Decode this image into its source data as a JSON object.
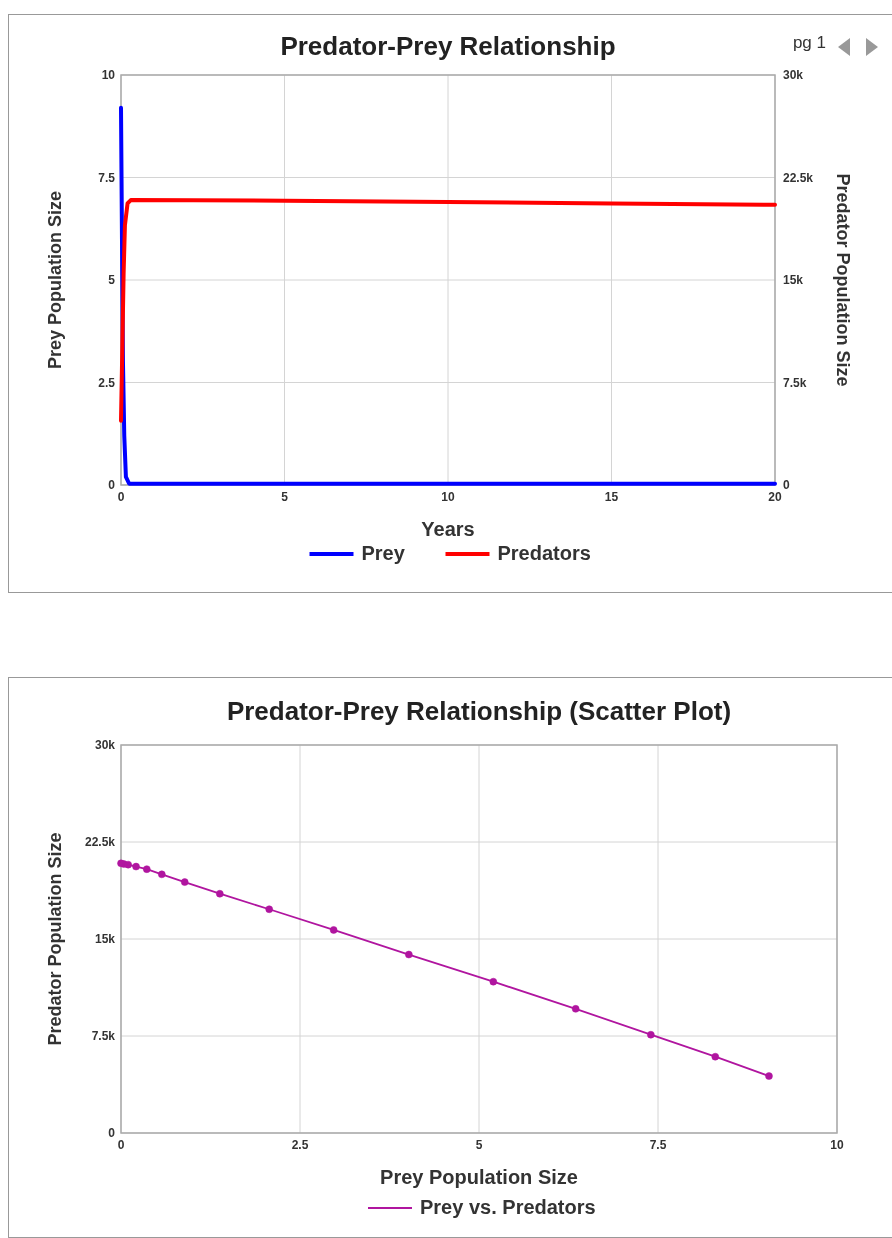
{
  "chart_data": [
    {
      "type": "line",
      "title": "Predator-Prey Relationship",
      "xlabel": "Years",
      "ylabel": "Prey Population Size",
      "y2label": "Predator Population Size",
      "annotations": [
        "pg 1"
      ],
      "xlim": [
        0,
        20
      ],
      "xticks": [
        0,
        5,
        10,
        15,
        20
      ],
      "ylim": [
        0,
        10
      ],
      "yticks": [
        0,
        2.5,
        5,
        7.5,
        10
      ],
      "y2lim": [
        0,
        30000
      ],
      "y2ticks": [
        {
          "value": 0,
          "label": "0"
        },
        {
          "value": 7500,
          "label": "7.5k"
        },
        {
          "value": 15000,
          "label": "15k"
        },
        {
          "value": 22500,
          "label": "22.5k"
        },
        {
          "value": 30000,
          "label": "30k"
        }
      ],
      "grid": true,
      "legend": "bottom",
      "marker": "none",
      "series": [
        {
          "name": "Prey",
          "color": "#0000ff",
          "x": [
            0,
            0.03,
            0.06,
            0.1,
            0.15,
            0.25,
            20
          ],
          "values": [
            9.2,
            6,
            3,
            1.2,
            0.2,
            0.03,
            0.03
          ]
        },
        {
          "name": "Predators",
          "color": "#ff0000",
          "axis": "y2",
          "x": [
            0,
            0.04,
            0.08,
            0.12,
            0.2,
            0.3,
            5,
            10,
            15,
            20
          ],
          "values": [
            4700,
            10000,
            15500,
            19000,
            20600,
            20850,
            20800,
            20700,
            20600,
            20500
          ]
        }
      ]
    },
    {
      "type": "line",
      "title": "Predator-Prey Relationship (Scatter Plot)",
      "xlabel": "Prey Population Size",
      "ylabel": "Predator Population Size",
      "xlim": [
        0,
        10
      ],
      "xticks": [
        0,
        2.5,
        5,
        7.5,
        10
      ],
      "ylim": [
        0,
        30000
      ],
      "yticks": [
        {
          "value": 0,
          "label": "0"
        },
        {
          "value": 7500,
          "label": "7.5k"
        },
        {
          "value": 15000,
          "label": "15k"
        },
        {
          "value": 22500,
          "label": "22.5k"
        },
        {
          "value": 30000,
          "label": "30k"
        }
      ],
      "grid": true,
      "legend": "bottom",
      "marker": "circle",
      "series": [
        {
          "name": "Prey vs. Predators",
          "color": "#b0159f",
          "x": [
            9.05,
            8.3,
            7.4,
            6.35,
            5.2,
            4.02,
            2.97,
            2.07,
            1.38,
            0.89,
            0.57,
            0.36,
            0.21,
            0.1,
            0.04,
            0
          ],
          "values": [
            4400,
            5900,
            7600,
            9600,
            11700,
            13800,
            15700,
            17300,
            18500,
            19400,
            20000,
            20400,
            20600,
            20750,
            20800,
            20850
          ]
        }
      ]
    }
  ]
}
